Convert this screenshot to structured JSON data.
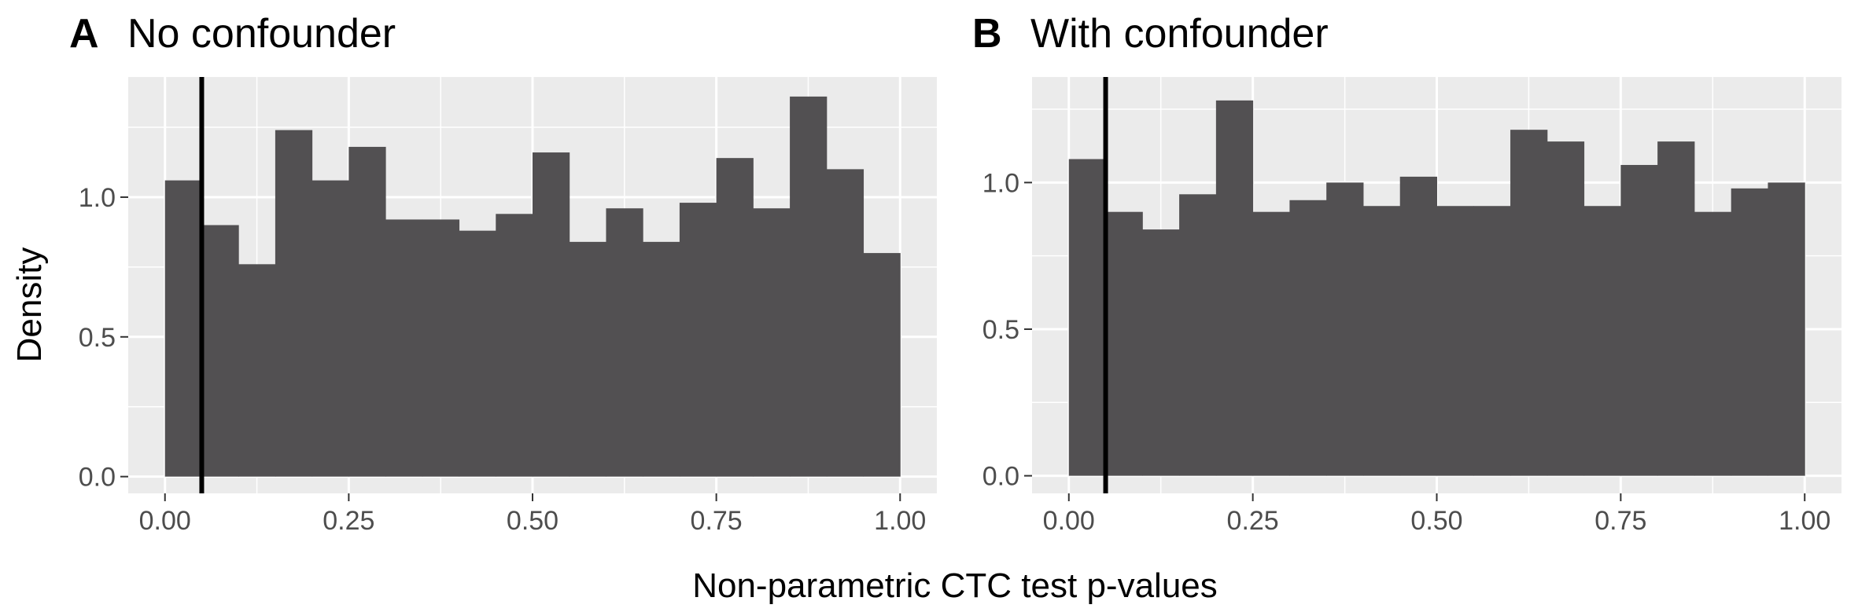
{
  "chart_data": [
    {
      "type": "histogram",
      "tag": "A",
      "title": "No confounder",
      "xlabel": "Non-parametric CTC test p-values",
      "ylabel": "Density",
      "xlim": [
        -0.05,
        1.05
      ],
      "ylim": [
        -0.06,
        1.43
      ],
      "x_ticks": [
        "0.00",
        "0.25",
        "0.50",
        "0.75",
        "1.00"
      ],
      "y_ticks": [
        "0.0",
        "0.5",
        "1.0"
      ],
      "bin_width": 0.05,
      "bin_starts": [
        0.0,
        0.05,
        0.1,
        0.15,
        0.2,
        0.25,
        0.3,
        0.35,
        0.4,
        0.45,
        0.5,
        0.55,
        0.6,
        0.65,
        0.7,
        0.75,
        0.8,
        0.85,
        0.9,
        0.95
      ],
      "values": [
        1.06,
        0.9,
        0.76,
        1.24,
        1.06,
        1.18,
        0.92,
        0.92,
        0.88,
        0.94,
        1.16,
        0.84,
        0.96,
        0.84,
        0.98,
        1.14,
        0.96,
        1.36,
        1.1,
        0.8
      ],
      "vline_x": 0.05,
      "grid": true,
      "bar_color": "#525052",
      "panel_background": "#ebebeb"
    },
    {
      "type": "histogram",
      "tag": "B",
      "title": "With confounder",
      "xlabel": "Non-parametric CTC test p-values",
      "ylabel": "",
      "xlim": [
        -0.05,
        1.05
      ],
      "ylim": [
        -0.06,
        1.36
      ],
      "x_ticks": [
        "0.00",
        "0.25",
        "0.50",
        "0.75",
        "1.00"
      ],
      "y_ticks": [
        "0.0",
        "0.5",
        "1.0"
      ],
      "bin_width": 0.05,
      "bin_starts": [
        0.0,
        0.05,
        0.1,
        0.15,
        0.2,
        0.25,
        0.3,
        0.35,
        0.4,
        0.45,
        0.5,
        0.55,
        0.6,
        0.65,
        0.7,
        0.75,
        0.8,
        0.85,
        0.9,
        0.95
      ],
      "values": [
        1.08,
        0.9,
        0.84,
        0.96,
        1.28,
        0.9,
        0.94,
        1.0,
        0.92,
        1.02,
        0.92,
        0.92,
        1.18,
        1.14,
        0.92,
        1.06,
        1.14,
        0.9,
        0.98,
        1.0
      ],
      "vline_x": 0.05,
      "grid": true,
      "bar_color": "#525052",
      "panel_background": "#ebebeb"
    }
  ]
}
